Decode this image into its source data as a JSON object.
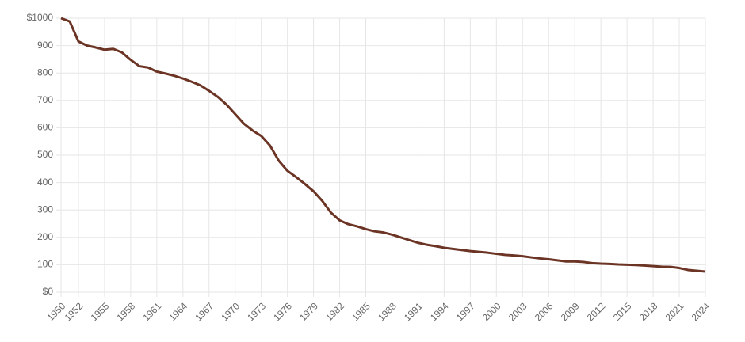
{
  "chart_data": {
    "type": "line",
    "x": [
      1950,
      1951,
      1952,
      1953,
      1954,
      1955,
      1956,
      1957,
      1958,
      1959,
      1960,
      1961,
      1962,
      1963,
      1964,
      1965,
      1966,
      1967,
      1968,
      1969,
      1970,
      1971,
      1972,
      1973,
      1974,
      1975,
      1976,
      1977,
      1978,
      1979,
      1980,
      1981,
      1982,
      1983,
      1984,
      1985,
      1986,
      1987,
      1988,
      1989,
      1990,
      1991,
      1992,
      1993,
      1994,
      1995,
      1996,
      1997,
      1998,
      1999,
      2000,
      2001,
      2002,
      2003,
      2004,
      2005,
      2006,
      2007,
      2008,
      2009,
      2010,
      2011,
      2012,
      2013,
      2014,
      2015,
      2016,
      2017,
      2018,
      2019,
      2020,
      2021,
      2022,
      2023,
      2024
    ],
    "values": [
      1000,
      988,
      915,
      900,
      893,
      885,
      888,
      875,
      848,
      825,
      820,
      805,
      798,
      790,
      780,
      768,
      755,
      735,
      713,
      685,
      650,
      615,
      590,
      570,
      535,
      480,
      443,
      420,
      395,
      368,
      333,
      290,
      262,
      248,
      240,
      230,
      222,
      218,
      210,
      200,
      190,
      180,
      173,
      168,
      162,
      158,
      154,
      150,
      147,
      144,
      140,
      136,
      134,
      131,
      127,
      123,
      120,
      116,
      112,
      112,
      110,
      106,
      104,
      103,
      101,
      100,
      99,
      97,
      95,
      93,
      92,
      88,
      81,
      78,
      75
    ],
    "color": "#6b3424",
    "xlim": [
      1950,
      2024
    ],
    "xticks": [
      1950,
      1952,
      1955,
      1958,
      1961,
      1964,
      1967,
      1970,
      1973,
      1976,
      1979,
      1982,
      1985,
      1988,
      1991,
      1994,
      1997,
      2000,
      2003,
      2006,
      2009,
      2012,
      2015,
      2018,
      2021,
      2024
    ],
    "ylim": [
      0,
      1000
    ],
    "yticks": [
      {
        "value": 0,
        "label": "$0"
      },
      100,
      200,
      300,
      400,
      500,
      600,
      700,
      800,
      900,
      {
        "value": 1000,
        "label": "$1000"
      }
    ],
    "grid": true
  }
}
